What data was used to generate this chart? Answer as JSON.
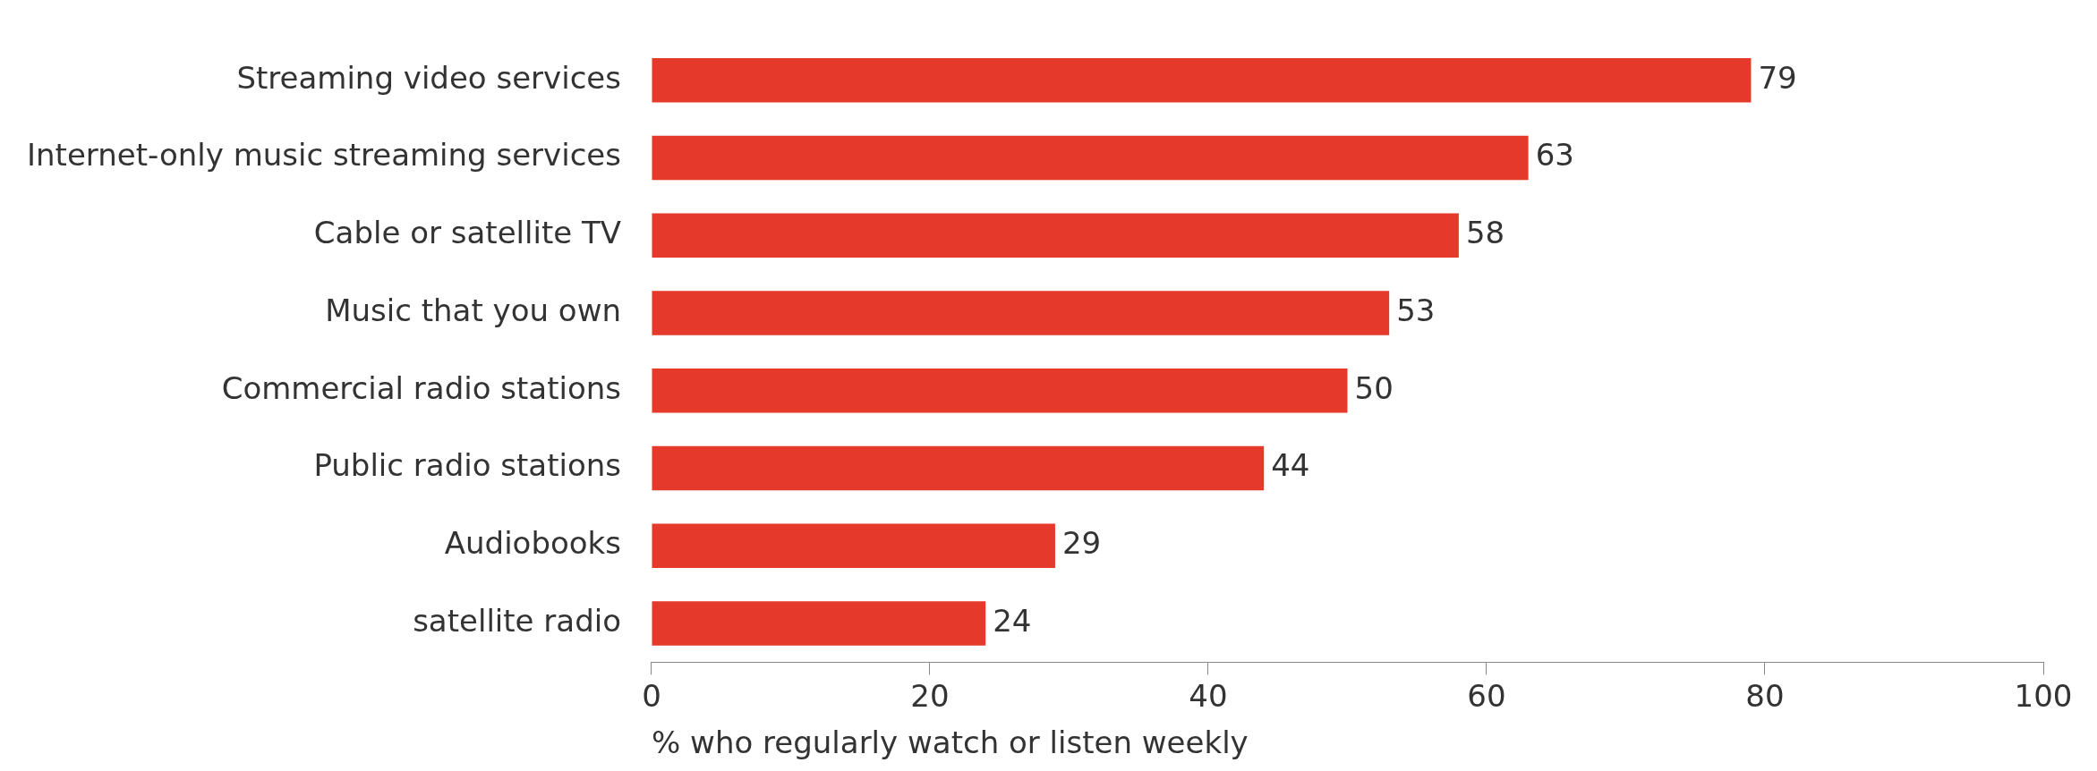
{
  "chart_data": {
    "type": "bar",
    "orientation": "horizontal",
    "xlabel": "% who regularly watch or listen weekly",
    "categories": [
      "Streaming video services",
      "Internet-only music streaming services",
      "Cable or satellite TV",
      "Music that you own",
      "Commercial radio stations",
      "Public radio stations",
      "Audiobooks",
      "satellite radio"
    ],
    "values": [
      79,
      63,
      58,
      53,
      50,
      44,
      29,
      24
    ],
    "color": "#e53a2b",
    "xlim": [
      0,
      100
    ],
    "xticks": [
      0,
      20,
      40,
      60,
      80,
      100
    ],
    "grid": false,
    "legend": false,
    "data_labels": true
  }
}
